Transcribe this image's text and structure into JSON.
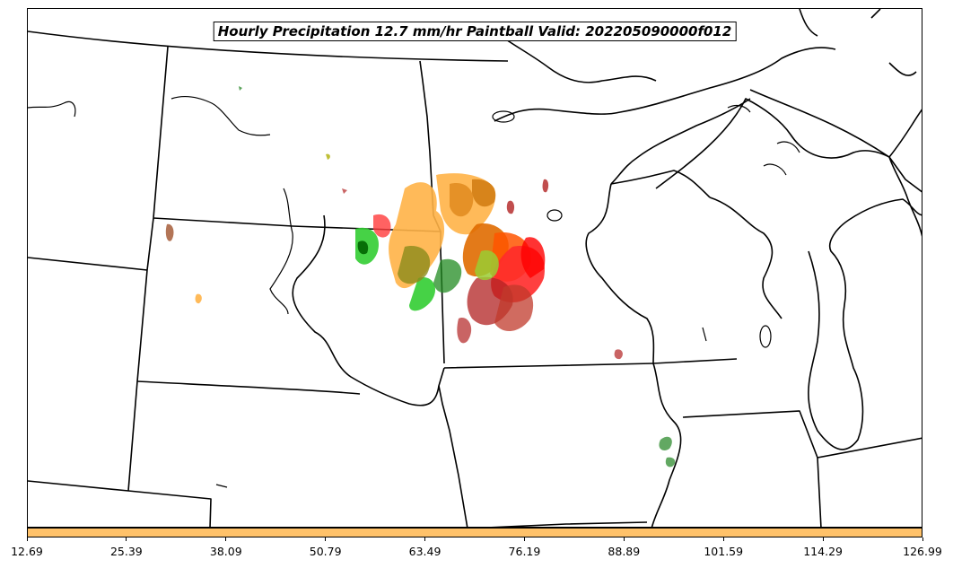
{
  "title": "Hourly Precipitation 12.7 mm/hr Paintball Valid: 202205090000f012",
  "colorbar": {
    "color": "#ffc26a",
    "ticks": [
      "12.69",
      "25.39",
      "38.09",
      "50.79",
      "63.49",
      "76.19",
      "88.89",
      "101.59",
      "114.29",
      "126.99"
    ]
  },
  "map": {
    "region": "Upper Midwest United States",
    "boundary_color": "#000000",
    "paintball_colors": [
      "#ffb347",
      "#e07b00",
      "#ff0000",
      "#b22222",
      "#32cd32",
      "#006400",
      "#9acd32",
      "#a0522d"
    ]
  }
}
